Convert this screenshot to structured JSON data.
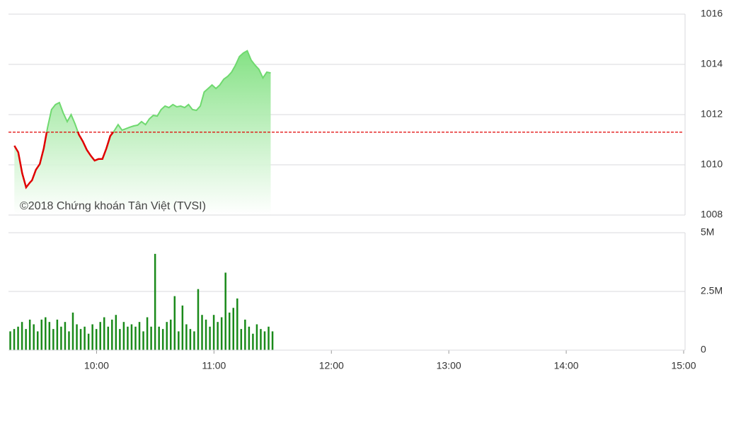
{
  "chart_data": [
    {
      "type": "line",
      "x": [
        "9:18",
        "9:20",
        "9:22",
        "9:24",
        "9:26",
        "9:27",
        "9:29",
        "9:31",
        "9:33",
        "9:35",
        "9:37",
        "9:39",
        "9:41",
        "9:43",
        "9:45",
        "9:47",
        "9:49",
        "9:51",
        "9:53",
        "9:55",
        "9:57",
        "9:59",
        "10:01",
        "10:03",
        "10:05",
        "10:07",
        "10:09",
        "10:11",
        "10:13",
        "10:15",
        "10:17",
        "10:19",
        "10:21",
        "10:23",
        "10:25",
        "10:27",
        "10:29",
        "10:31",
        "10:33",
        "10:35",
        "10:37",
        "10:39",
        "10:41",
        "10:43",
        "10:45",
        "10:47",
        "10:49",
        "10:51",
        "10:53",
        "10:55",
        "10:57",
        "10:59",
        "11:01",
        "11:03",
        "11:05",
        "11:07",
        "11:09",
        "11:11",
        "11:13",
        "11:15",
        "11:17",
        "11:19",
        "11:21",
        "11:23",
        "11:25",
        "11:27",
        "11:29"
      ],
      "values": [
        1010.76,
        1010.5,
        1009.66,
        1009.1,
        1009.3,
        1009.38,
        1009.8,
        1010.03,
        1010.65,
        1011.5,
        1012.2,
        1012.4,
        1012.48,
        1012.06,
        1011.72,
        1012.0,
        1011.63,
        1011.2,
        1010.93,
        1010.6,
        1010.37,
        1010.17,
        1010.23,
        1010.23,
        1010.65,
        1011.15,
        1011.35,
        1011.6,
        1011.38,
        1011.44,
        1011.5,
        1011.55,
        1011.58,
        1011.72,
        1011.6,
        1011.83,
        1011.97,
        1011.94,
        1012.2,
        1012.34,
        1012.28,
        1012.4,
        1012.31,
        1012.34,
        1012.28,
        1012.4,
        1012.2,
        1012.17,
        1012.34,
        1012.9,
        1013.04,
        1013.18,
        1013.04,
        1013.18,
        1013.41,
        1013.52,
        1013.69,
        1013.97,
        1014.31,
        1014.45,
        1014.54,
        1014.17,
        1013.97,
        1013.8,
        1013.46,
        1013.69,
        1013.66
      ],
      "color": "#6fd96f",
      "down_color": "#e00000",
      "reference": 1011.3,
      "reference_color": "#e00000",
      "xlim": [
        "9:15",
        "15:00"
      ],
      "ylim": [
        1008,
        1016
      ],
      "yticks": [
        1008,
        1010,
        1012,
        1014,
        1016
      ],
      "grid": true,
      "annotation": "©2018 Chứng khoán Tân Việt (TVSI)"
    },
    {
      "type": "bar",
      "x": [
        "9:16",
        "9:18",
        "9:20",
        "9:22",
        "9:24",
        "9:26",
        "9:28",
        "9:30",
        "9:32",
        "9:34",
        "9:36",
        "9:38",
        "9:40",
        "9:42",
        "9:44",
        "9:46",
        "9:48",
        "9:50",
        "9:52",
        "9:54",
        "9:56",
        "9:58",
        "10:00",
        "10:02",
        "10:04",
        "10:06",
        "10:08",
        "10:10",
        "10:12",
        "10:14",
        "10:16",
        "10:18",
        "10:20",
        "10:22",
        "10:24",
        "10:26",
        "10:28",
        "10:30",
        "10:32",
        "10:34",
        "10:36",
        "10:38",
        "10:40",
        "10:42",
        "10:44",
        "10:46",
        "10:48",
        "10:50",
        "10:52",
        "10:54",
        "10:56",
        "10:58",
        "11:00",
        "11:02",
        "11:04",
        "11:06",
        "11:08",
        "11:10",
        "11:12",
        "11:14",
        "11:16",
        "11:18",
        "11:20",
        "11:22",
        "11:24",
        "11:26",
        "11:28",
        "11:30"
      ],
      "values": [
        0.8,
        0.9,
        1.0,
        1.2,
        0.9,
        1.3,
        1.1,
        0.8,
        1.3,
        1.4,
        1.2,
        0.9,
        1.3,
        1.0,
        1.2,
        0.8,
        1.6,
        1.1,
        0.9,
        1.0,
        0.7,
        1.1,
        0.9,
        1.2,
        1.4,
        1.0,
        1.3,
        1.5,
        0.9,
        1.2,
        1.0,
        1.1,
        1.0,
        1.2,
        0.8,
        1.4,
        1.0,
        4.1,
        1.0,
        0.9,
        1.2,
        1.3,
        2.3,
        0.8,
        1.9,
        1.1,
        0.9,
        0.8,
        2.6,
        1.5,
        1.3,
        1.0,
        1.5,
        1.2,
        1.4,
        3.3,
        1.6,
        1.8,
        2.2,
        0.9,
        1.3,
        1.0,
        0.7,
        1.1,
        0.9,
        0.8,
        1.0,
        0.8
      ],
      "color": "#1a8a1a",
      "xlim": [
        "9:15",
        "15:00"
      ],
      "xticks": [
        "10:00",
        "11:00",
        "12:00",
        "13:00",
        "14:00",
        "15:00"
      ],
      "ylim": [
        0,
        5
      ],
      "yticks": [
        0,
        {
          "value": 2.5,
          "label": "2.5M"
        },
        {
          "value": 5,
          "label": "5M"
        }
      ],
      "grid": true
    }
  ]
}
